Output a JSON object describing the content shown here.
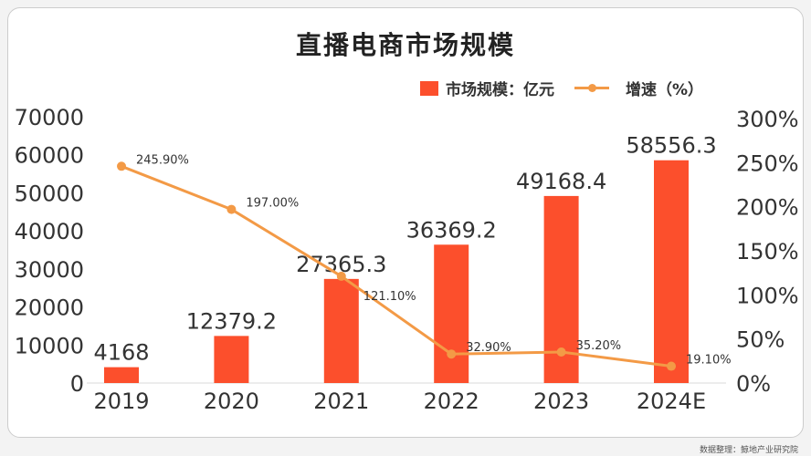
{
  "chart_data": {
    "type": "bar+line",
    "title": "直播电商市场规模",
    "categories": [
      "2019",
      "2020",
      "2021",
      "2022",
      "2023",
      "2024E"
    ],
    "series": [
      {
        "name": "市场规模：亿元",
        "type": "bar",
        "axis": "left",
        "values": [
          4168,
          12379.2,
          27365.3,
          36369.2,
          49168.4,
          58556.3
        ],
        "labels": [
          "4168",
          "12379.2",
          "27365.3",
          "36369.2",
          "49168.4",
          "58556.3"
        ],
        "color": "#fc4f2c"
      },
      {
        "name": "增速（%）",
        "type": "line",
        "axis": "right",
        "values": [
          245.9,
          197.0,
          121.1,
          32.9,
          35.2,
          19.1
        ],
        "labels": [
          "245.90%",
          "197.00%",
          "121.10%",
          "32.90%",
          "35.20%",
          "19.10%"
        ],
        "color": "#f39a46"
      }
    ],
    "left_axis": {
      "ylim": [
        0,
        70000
      ],
      "ticks": [
        "0",
        "10000",
        "20000",
        "30000",
        "40000",
        "50000",
        "60000",
        "70000"
      ]
    },
    "right_axis": {
      "ylim": [
        0,
        300
      ],
      "ticks": [
        "0%",
        "50%",
        "100%",
        "150%",
        "200%",
        "250%",
        "300%"
      ]
    },
    "legend": "top-right",
    "grid": false
  },
  "source": "数据整理：鲸地产业研究院"
}
